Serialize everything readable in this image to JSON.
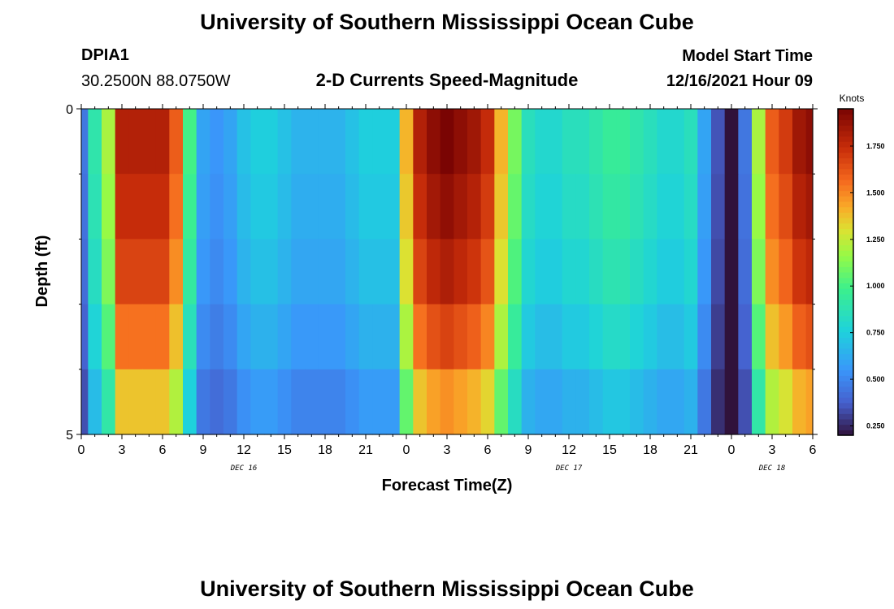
{
  "title": "University of Southern Mississippi Ocean Cube",
  "title_repeat": "University of Southern Mississippi Ocean Cube",
  "station": {
    "id": "DPIA1",
    "coords": "30.2500N  88.0750W"
  },
  "model_start": {
    "label": "Model Start Time",
    "value": "12/16/2021 Hour 09"
  },
  "chart_data": {
    "type": "heatmap",
    "title": "2-D Currents Speed-Magnitude",
    "xlabel": "Forecast Time(Z)",
    "ylabel": "Depth (ft)",
    "x_tick_labels": [
      "0",
      "3",
      "6",
      "9",
      "12",
      "15",
      "18",
      "21",
      "0",
      "3",
      "6",
      "9",
      "12",
      "15",
      "18",
      "21",
      "0",
      "3",
      "6"
    ],
    "x_range_hours": [
      0,
      54
    ],
    "date_labels": [
      {
        "label": "DEC 16",
        "hour": 12
      },
      {
        "label": "DEC 17",
        "hour": 36
      },
      {
        "label": "DEC 18",
        "hour": 51
      }
    ],
    "y_tick_labels": [
      "0",
      "5"
    ],
    "y_range": [
      0,
      5
    ],
    "depth_rows": 5,
    "colorbar": {
      "unit": "Knots",
      "range": [
        0.2,
        1.95
      ],
      "ticks": [
        "0.250",
        "0.500",
        "0.750",
        "1.000",
        "1.250",
        "1.500",
        "1.750"
      ],
      "tick_values": [
        0.25,
        0.5,
        0.75,
        1.0,
        1.25,
        1.5,
        1.75
      ]
    },
    "surface_speed_knots": [
      0.45,
      0.9,
      1.2,
      1.8,
      1.8,
      1.8,
      1.8,
      1.6,
      1.0,
      0.6,
      0.55,
      0.6,
      0.7,
      0.75,
      0.75,
      0.7,
      0.65,
      0.65,
      0.65,
      0.65,
      0.7,
      0.75,
      0.75,
      0.75,
      1.4,
      1.8,
      1.9,
      1.95,
      1.9,
      1.85,
      1.75,
      1.4,
      1.1,
      0.85,
      0.8,
      0.8,
      0.85,
      0.85,
      0.9,
      0.95,
      0.95,
      0.9,
      0.85,
      0.8,
      0.8,
      0.85,
      0.6,
      0.35,
      0.2,
      0.45,
      1.2,
      1.6,
      1.7,
      1.85,
      1.9
    ],
    "row_factors": [
      1.0,
      0.97,
      0.93,
      0.86,
      0.76
    ]
  }
}
